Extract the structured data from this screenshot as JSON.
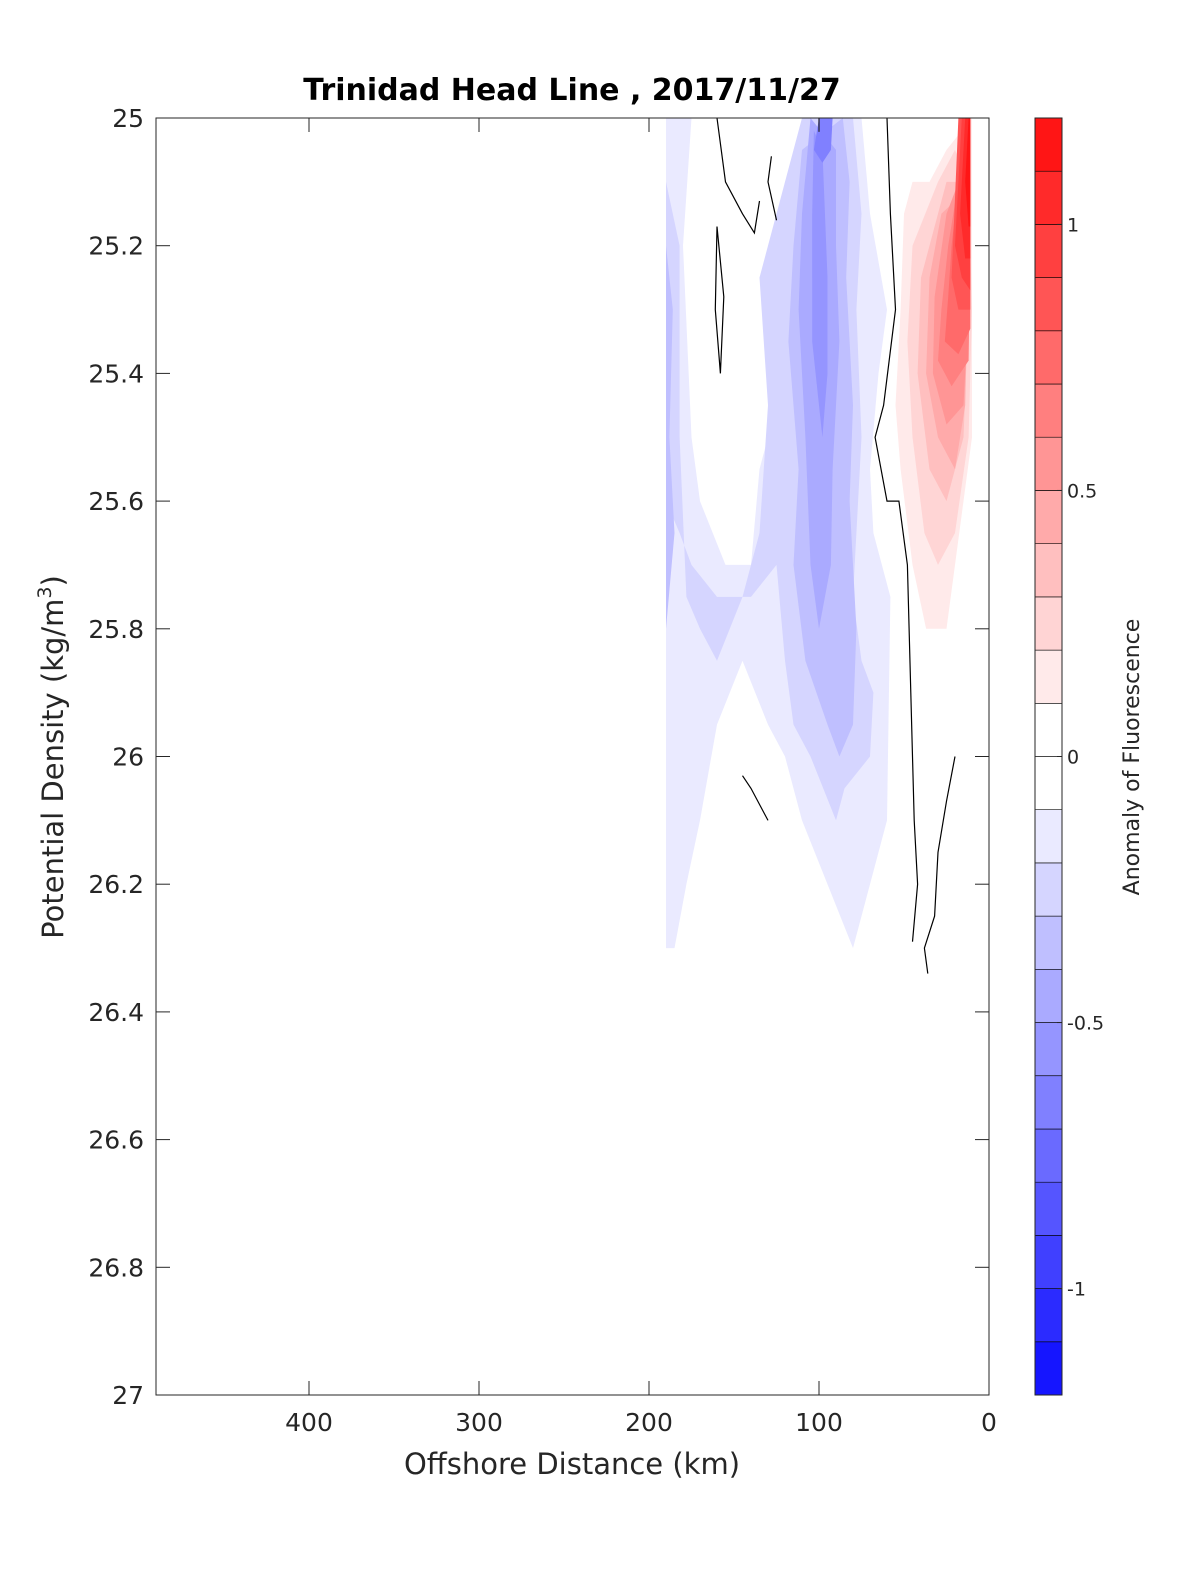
{
  "chart_data": {
    "type": "heatmap",
    "subtype": "filled-contour",
    "title": "Trinidad Head Line , 2017/11/27",
    "xlabel": "Offshore Distance (km)",
    "ylabel": "Potential Density (kg/m³)",
    "ylabel_base": "Potential Density (kg/m",
    "ylabel_sup": "3",
    "ylabel_tail": ")",
    "x_reversed": true,
    "y_reversed": true,
    "xlim": [
      490,
      0
    ],
    "ylim": [
      25,
      27
    ],
    "xticks": [
      400,
      300,
      200,
      100,
      0
    ],
    "xtick_labels": [
      "400",
      "300",
      "200",
      "100",
      "0"
    ],
    "yticks": [
      25,
      25.2,
      25.4,
      25.6,
      25.8,
      26,
      26.2,
      26.4,
      26.6,
      26.8,
      27
    ],
    "ytick_labels": [
      "25",
      "25.2",
      "25.4",
      "25.6",
      "25.8",
      "26",
      "26.2",
      "26.4",
      "26.6",
      "26.8",
      "27"
    ],
    "grid": false,
    "colorbar": {
      "label": "Anomaly of Fluorescence",
      "range": [
        -1.2,
        1.2
      ],
      "step": 0.1,
      "ticks": [
        1,
        0.5,
        0,
        -0.5,
        -1
      ],
      "tick_labels": [
        "1",
        "0.5",
        "0",
        "-0.5",
        "-1"
      ],
      "colors": {
        "negative_end": "#0000ff",
        "zero": "#ffffff",
        "positive_end": "#ff0000"
      }
    },
    "regions": [
      {
        "level": -0.1,
        "points": [
          [
            190,
            25
          ],
          [
            175,
            25
          ],
          [
            180,
            25.2
          ],
          [
            175,
            25.5
          ],
          [
            170,
            25.6
          ],
          [
            155,
            25.7
          ],
          [
            140,
            25.7
          ],
          [
            135,
            25.55
          ],
          [
            125,
            25.45
          ],
          [
            130,
            25.25
          ],
          [
            125,
            25.2
          ],
          [
            120,
            25.1
          ],
          [
            105,
            25
          ],
          [
            75,
            25
          ],
          [
            70,
            25.15
          ],
          [
            60,
            25.3
          ],
          [
            65,
            25.4
          ],
          [
            70,
            25.55
          ],
          [
            68,
            25.65
          ],
          [
            58,
            25.75
          ],
          [
            60,
            26.1
          ],
          [
            70,
            26.2
          ],
          [
            80,
            26.3
          ],
          [
            95,
            26.2
          ],
          [
            110,
            26.1
          ],
          [
            120,
            26
          ],
          [
            130,
            25.95
          ],
          [
            145,
            25.85
          ],
          [
            160,
            25.95
          ],
          [
            170,
            26.1
          ],
          [
            178,
            26.2
          ],
          [
            185,
            26.3
          ],
          [
            190,
            26.3
          ]
        ]
      },
      {
        "level": -0.2,
        "points": [
          [
            190,
            25.1
          ],
          [
            182,
            25.2
          ],
          [
            182,
            25.5
          ],
          [
            178,
            25.75
          ],
          [
            170,
            25.8
          ],
          [
            160,
            25.85
          ],
          [
            145,
            25.75
          ],
          [
            135,
            25.65
          ],
          [
            130,
            25.45
          ],
          [
            135,
            25.25
          ],
          [
            120,
            25.1
          ],
          [
            110,
            25
          ],
          [
            80,
            25
          ],
          [
            75,
            25.15
          ],
          [
            78,
            25.3
          ],
          [
            75,
            25.5
          ],
          [
            80,
            25.75
          ],
          [
            75,
            25.85
          ],
          [
            68,
            25.9
          ],
          [
            70,
            26
          ],
          [
            85,
            26.05
          ],
          [
            90,
            26.1
          ],
          [
            105,
            26
          ],
          [
            115,
            25.95
          ],
          [
            120,
            25.85
          ],
          [
            125,
            25.7
          ],
          [
            140,
            25.75
          ],
          [
            160,
            25.75
          ],
          [
            175,
            25.7
          ],
          [
            182,
            25.65
          ],
          [
            190,
            25.6
          ]
        ]
      },
      {
        "level": -0.3,
        "points": [
          [
            190,
            25.2
          ],
          [
            186,
            25.3
          ],
          [
            188,
            25.5
          ],
          [
            185,
            25.65
          ],
          [
            190,
            25.8
          ]
        ]
      },
      {
        "level": -0.3,
        "points": [
          [
            110,
            25.05
          ],
          [
            115,
            25.2
          ],
          [
            118,
            25.35
          ],
          [
            112,
            25.55
          ],
          [
            115,
            25.7
          ],
          [
            108,
            25.85
          ],
          [
            95,
            25.95
          ],
          [
            88,
            26
          ],
          [
            80,
            25.95
          ],
          [
            78,
            25.8
          ],
          [
            82,
            25.6
          ],
          [
            80,
            25.45
          ],
          [
            84,
            25.25
          ],
          [
            82,
            25.1
          ],
          [
            86,
            25
          ]
        ]
      },
      {
        "level": -0.4,
        "points": [
          [
            110,
            25.15
          ],
          [
            112,
            25.3
          ],
          [
            108,
            25.5
          ],
          [
            105,
            25.7
          ],
          [
            100,
            25.8
          ],
          [
            93,
            25.7
          ],
          [
            92,
            25.55
          ],
          [
            88,
            25.35
          ],
          [
            90,
            25.2
          ],
          [
            90,
            25.05
          ],
          [
            105,
            25
          ]
        ]
      },
      {
        "level": -0.5,
        "points": [
          [
            104,
            25.15
          ],
          [
            104,
            25.35
          ],
          [
            98,
            25.5
          ],
          [
            95,
            25.4
          ],
          [
            95,
            25.25
          ],
          [
            98,
            25.05
          ],
          [
            103,
            25.02
          ]
        ]
      },
      {
        "level": -0.6,
        "points": [
          [
            103,
            25.05
          ],
          [
            98,
            25.07
          ],
          [
            93,
            25.05
          ],
          [
            92,
            25.0
          ],
          [
            100,
            25.0
          ]
        ]
      },
      {
        "level": 0.1,
        "points": [
          [
            50,
            25.15
          ],
          [
            52,
            25.3
          ],
          [
            55,
            25.45
          ],
          [
            52,
            25.55
          ],
          [
            45,
            25.7
          ],
          [
            37,
            25.8
          ],
          [
            25,
            25.8
          ],
          [
            20,
            25.7
          ],
          [
            15,
            25.6
          ],
          [
            10,
            25.5
          ],
          [
            10,
            25
          ],
          [
            25,
            25.05
          ],
          [
            35,
            25.1
          ],
          [
            45,
            25.1
          ]
        ]
      },
      {
        "level": 0.2,
        "points": [
          [
            45,
            25.2
          ],
          [
            48,
            25.35
          ],
          [
            45,
            25.5
          ],
          [
            38,
            25.65
          ],
          [
            30,
            25.7
          ],
          [
            20,
            25.65
          ],
          [
            12,
            25.5
          ],
          [
            10,
            25.3
          ],
          [
            12,
            25.1
          ],
          [
            20,
            25.05
          ],
          [
            30,
            25.1
          ]
        ]
      },
      {
        "level": 0.3,
        "points": [
          [
            40,
            25.25
          ],
          [
            42,
            25.4
          ],
          [
            35,
            25.55
          ],
          [
            25,
            25.6
          ],
          [
            15,
            25.5
          ],
          [
            12,
            25.3
          ],
          [
            15,
            25.1
          ],
          [
            25,
            25.1
          ]
        ]
      },
      {
        "level": 0.4,
        "points": [
          [
            35,
            25.25
          ],
          [
            37,
            25.4
          ],
          [
            30,
            25.5
          ],
          [
            20,
            25.55
          ],
          [
            14,
            25.45
          ],
          [
            13,
            25.3
          ],
          [
            16,
            25.12
          ],
          [
            28,
            25.15
          ]
        ]
      },
      {
        "level": 0.5,
        "points": [
          [
            32,
            25.28
          ],
          [
            33,
            25.4
          ],
          [
            25,
            25.48
          ],
          [
            15,
            25.45
          ],
          [
            12,
            25.3
          ],
          [
            15,
            25.08
          ],
          [
            25,
            25.15
          ]
        ]
      },
      {
        "level": 0.6,
        "points": [
          [
            28,
            25.3
          ],
          [
            30,
            25.38
          ],
          [
            22,
            25.42
          ],
          [
            12,
            25.38
          ],
          [
            11,
            25.2
          ],
          [
            15,
            25.05
          ],
          [
            24,
            25.2
          ]
        ]
      },
      {
        "level": 0.7,
        "points": [
          [
            24,
            25.28
          ],
          [
            26,
            25.35
          ],
          [
            18,
            25.37
          ],
          [
            11,
            25.33
          ],
          [
            11,
            25.15
          ],
          [
            15,
            25.03
          ],
          [
            22,
            25.2
          ]
        ]
      },
      {
        "level": 0.8,
        "points": [
          [
            22,
            25.25
          ],
          [
            18,
            25.3
          ],
          [
            11,
            25.3
          ],
          [
            11,
            25.1
          ],
          [
            14,
            25.0
          ],
          [
            18,
            25.0
          ]
        ]
      },
      {
        "level": 0.9,
        "points": [
          [
            20,
            25.2
          ],
          [
            16,
            25.25
          ],
          [
            11,
            25.27
          ],
          [
            11,
            25.0
          ],
          [
            16,
            25.0
          ]
        ]
      },
      {
        "level": 1.0,
        "points": [
          [
            17,
            25.15
          ],
          [
            14,
            25.22
          ],
          [
            11,
            25.22
          ],
          [
            11,
            25.0
          ],
          [
            14,
            25.0
          ]
        ]
      },
      {
        "level": 1.1,
        "points": [
          [
            14,
            25.1
          ],
          [
            12,
            25.17
          ],
          [
            11,
            25.17
          ],
          [
            11,
            25.0
          ],
          [
            12,
            25.0
          ]
        ]
      }
    ],
    "zero_contours": [
      [
        [
          160,
          25.0
        ],
        [
          155,
          25.1
        ],
        [
          145,
          25.15
        ],
        [
          138,
          25.18
        ],
        [
          135,
          25.13
        ]
      ],
      [
        [
          160,
          25.17
        ],
        [
          161,
          25.3
        ],
        [
          158,
          25.4
        ],
        [
          156,
          25.28
        ],
        [
          160,
          25.17
        ]
      ],
      [
        [
          125,
          25.16
        ],
        [
          130,
          25.1
        ],
        [
          128,
          25.06
        ]
      ],
      [
        [
          100,
          25.0
        ],
        [
          100,
          25.02
        ]
      ],
      [
        [
          60,
          25.0
        ],
        [
          58,
          25.15
        ],
        [
          55,
          25.3
        ],
        [
          62,
          25.45
        ],
        [
          67,
          25.5
        ],
        [
          60,
          25.6
        ],
        [
          53,
          25.6
        ],
        [
          48,
          25.7
        ],
        [
          46,
          25.9
        ],
        [
          44,
          26.1
        ],
        [
          42,
          26.2
        ],
        [
          45,
          26.29
        ]
      ],
      [
        [
          20,
          26.0
        ],
        [
          25,
          26.07
        ],
        [
          30,
          26.15
        ],
        [
          32,
          26.25
        ],
        [
          38,
          26.3
        ],
        [
          36,
          26.34
        ]
      ],
      [
        [
          145,
          26.03
        ],
        [
          140,
          26.05
        ],
        [
          130,
          26.1
        ]
      ]
    ]
  }
}
